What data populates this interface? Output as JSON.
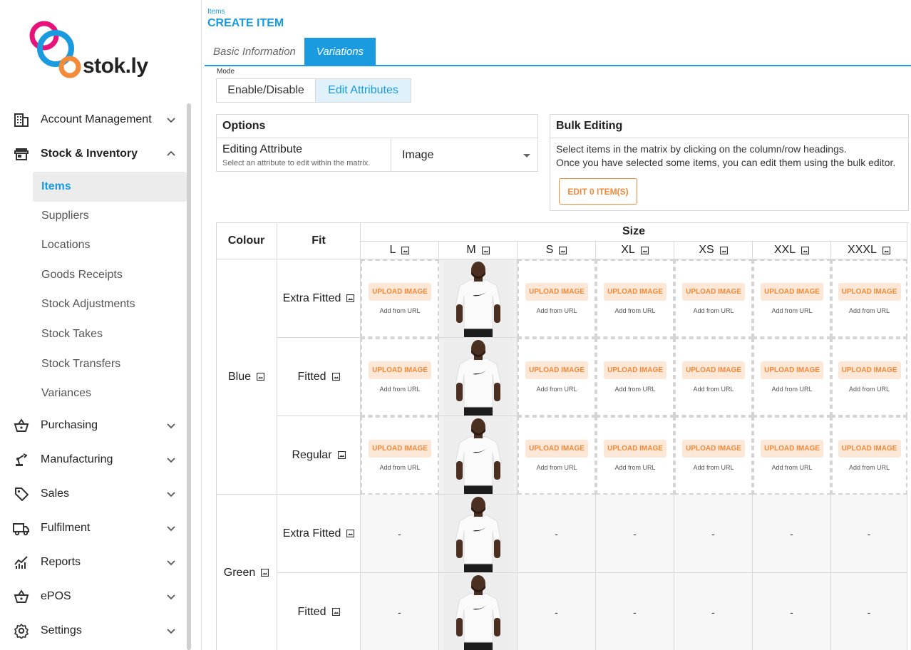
{
  "brand": {
    "logo_text": "stok.ly",
    "colors": {
      "accent": "#1a9be0",
      "orange": "#f28a3a",
      "pink": "#e8137a"
    }
  },
  "sidebar": {
    "items": [
      {
        "label": "Account Management",
        "icon": "building-icon"
      },
      {
        "label": "Stock & Inventory",
        "icon": "store-icon"
      },
      {
        "label": "Purchasing",
        "icon": "basket-icon"
      },
      {
        "label": "Manufacturing",
        "icon": "robot-arm-icon"
      },
      {
        "label": "Sales",
        "icon": "tag-icon"
      },
      {
        "label": "Fulfilment",
        "icon": "truck-icon"
      },
      {
        "label": "Reports",
        "icon": "chart-icon"
      },
      {
        "label": "ePOS",
        "icon": "basket-icon"
      },
      {
        "label": "Settings",
        "icon": "gear-icon"
      }
    ],
    "stock_sub_items": [
      "Items",
      "Suppliers",
      "Locations",
      "Goods Receipts",
      "Stock Adjustments",
      "Stock Takes",
      "Stock Transfers",
      "Variances"
    ]
  },
  "header": {
    "breadcrumb": "Items",
    "title": "CREATE ITEM"
  },
  "tabs": [
    {
      "label": "Basic Information"
    },
    {
      "label": "Variations"
    }
  ],
  "mode": {
    "label": "Mode",
    "options": [
      "Enable/Disable",
      "Edit Attributes"
    ],
    "selected": "Edit Attributes"
  },
  "options": {
    "title": "Options",
    "attr_label": "Editing Attribute",
    "attr_help": "Select an attribute to edit within the matrix.",
    "attr_value": "Image"
  },
  "bulk": {
    "title": "Bulk Editing",
    "line1": "Select items in the matrix by clicking on the column/row headings.",
    "line2": "Once you have selected some items, you can edit them using the bulk editor.",
    "button": "EDIT 0 ITEM(S)"
  },
  "matrix": {
    "colour_header": "Colour",
    "fit_header": "Fit",
    "size_header": "Size",
    "sizes": [
      "L",
      "M",
      "S",
      "XL",
      "XS",
      "XXL",
      "XXXL"
    ],
    "upload_label": "UPLOAD IMAGE",
    "url_label": "Add from URL",
    "dash": "-",
    "colours": [
      {
        "name": "Blue",
        "fits": [
          "Extra Fitted",
          "Fitted",
          "Regular"
        ]
      },
      {
        "name": "Green",
        "fits": [
          "Extra Fitted",
          "Fitted"
        ]
      }
    ]
  }
}
